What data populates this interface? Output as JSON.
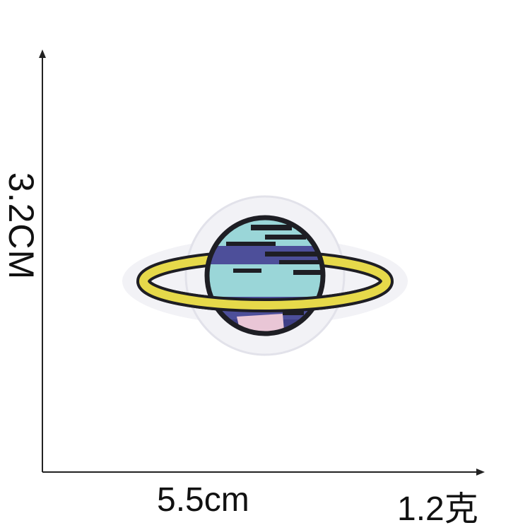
{
  "dimensions": {
    "height_label": "3.2CM",
    "width_label": "5.5cm",
    "weight_label": "1.2克"
  },
  "patch": {
    "subject": "embroidered planet patch",
    "colors": {
      "border": "#f2f2f6",
      "outline": "#1e1e24",
      "ring": "#e6d94a",
      "planet_light": "#9ad6d8",
      "planet_dark": "#4d4f9a",
      "accent_pink": "#e9c6d6"
    }
  }
}
